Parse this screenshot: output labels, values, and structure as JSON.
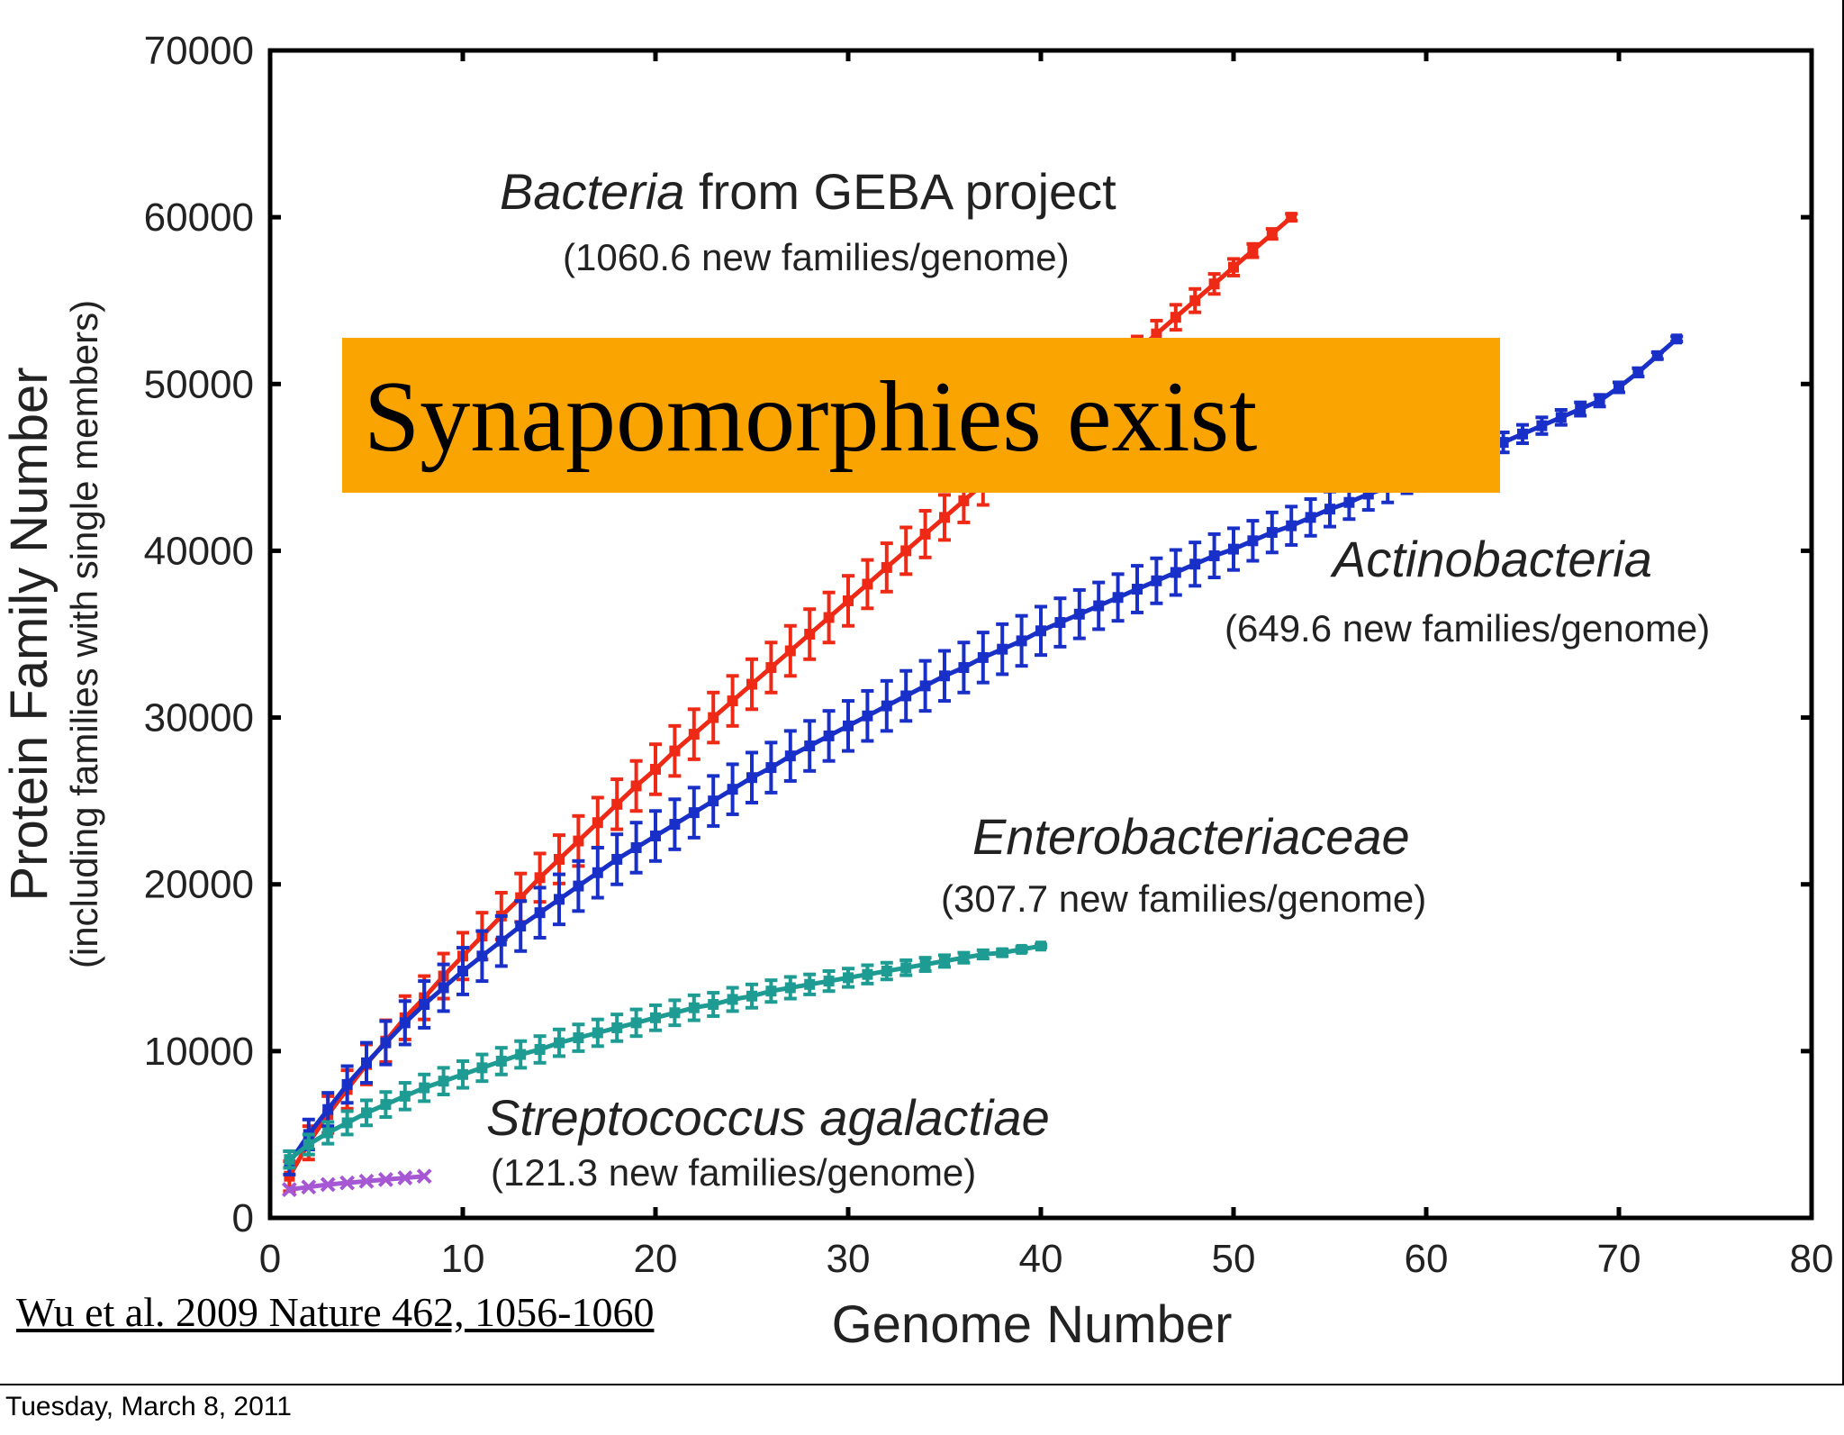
{
  "slide": {
    "banner_text": "Synapomorphies exist",
    "citation": "Wu et al. 2009 Nature 462, 1056-1060",
    "footer_date": "Tuesday, March 8, 2011"
  },
  "chart_data": {
    "type": "line",
    "title": "",
    "xlabel": "Genome Number",
    "ylabel": "Protein Family Number",
    "ylabel_sub": "(including families with single members)",
    "xlim": [
      0,
      80
    ],
    "ylim": [
      0,
      70000
    ],
    "xticks": [
      0,
      10,
      20,
      30,
      40,
      50,
      60,
      70,
      80
    ],
    "yticks": [
      0,
      10000,
      20000,
      30000,
      40000,
      50000,
      60000,
      70000
    ],
    "grid": false,
    "legend": "none",
    "series": [
      {
        "color": "#ee2a17",
        "error_bars": true,
        "annotation": {
          "name": "Bacteria",
          "name_suffix": " from GEBA project",
          "rate": "(1060.6 new families/genome)"
        },
        "x": [
          1,
          2,
          3,
          4,
          5,
          6,
          7,
          8,
          9,
          10,
          11,
          12,
          13,
          14,
          15,
          16,
          17,
          18,
          19,
          20,
          21,
          22,
          23,
          24,
          25,
          26,
          27,
          28,
          29,
          30,
          31,
          32,
          33,
          34,
          35,
          36,
          37,
          38,
          39,
          40,
          41,
          42,
          43,
          44,
          45,
          46,
          47,
          48,
          49,
          50,
          51,
          52,
          53
        ],
        "y": [
          2500,
          4500,
          6200,
          7700,
          9200,
          10600,
          12000,
          13200,
          14500,
          15700,
          16900,
          18100,
          19200,
          20400,
          21500,
          22600,
          23700,
          24800,
          25900,
          26900,
          28000,
          29000,
          30000,
          31000,
          32000,
          33000,
          34000,
          35000,
          36000,
          37000,
          38000,
          39000,
          40000,
          41000,
          42000,
          43000,
          44000,
          45000,
          46000,
          47000,
          48000,
          49000,
          50000,
          51000,
          52000,
          53000,
          54000,
          55000,
          56000,
          57000,
          58000,
          59000,
          60000
        ],
        "err": [
          900,
          1000,
          1100,
          1150,
          1200,
          1250,
          1300,
          1300,
          1350,
          1400,
          1400,
          1400,
          1450,
          1450,
          1450,
          1500,
          1500,
          1500,
          1500,
          1500,
          1500,
          1500,
          1500,
          1500,
          1500,
          1500,
          1500,
          1500,
          1500,
          1500,
          1450,
          1450,
          1400,
          1400,
          1350,
          1300,
          1250,
          1200,
          1150,
          1100,
          1050,
          1000,
          950,
          900,
          850,
          800,
          750,
          700,
          600,
          500,
          400,
          300,
          200
        ]
      },
      {
        "color": "#1930c8",
        "error_bars": true,
        "annotation": {
          "name": "Actinobacteria",
          "rate": "(649.6 new families/genome)"
        },
        "x": [
          1,
          2,
          3,
          4,
          5,
          6,
          7,
          8,
          9,
          10,
          11,
          12,
          13,
          14,
          15,
          16,
          17,
          18,
          19,
          20,
          21,
          22,
          23,
          24,
          25,
          26,
          27,
          28,
          29,
          30,
          31,
          32,
          33,
          34,
          35,
          36,
          37,
          38,
          39,
          40,
          41,
          42,
          43,
          44,
          45,
          46,
          47,
          48,
          49,
          50,
          51,
          52,
          53,
          54,
          55,
          56,
          57,
          58,
          59,
          60,
          61,
          62,
          63,
          64,
          65,
          66,
          67,
          68,
          69,
          70,
          71,
          72,
          73
        ],
        "y": [
          3300,
          5000,
          6500,
          8000,
          9300,
          10500,
          11700,
          12800,
          13800,
          14800,
          15700,
          16600,
          17500,
          18300,
          19100,
          19900,
          20700,
          21500,
          22200,
          22900,
          23600,
          24300,
          25000,
          25700,
          26400,
          27000,
          27700,
          28300,
          28900,
          29500,
          30100,
          30700,
          31300,
          31900,
          32500,
          33000,
          33600,
          34100,
          34600,
          35200,
          35700,
          36200,
          36700,
          37200,
          37700,
          38200,
          38700,
          39200,
          39700,
          40100,
          40600,
          41100,
          41500,
          42000,
          42500,
          42900,
          43400,
          43800,
          44300,
          44700,
          45200,
          45600,
          46100,
          46500,
          47000,
          47500,
          48000,
          48500,
          49000,
          49800,
          50700,
          51700,
          52700
        ],
        "err": [
          700,
          900,
          1000,
          1100,
          1200,
          1300,
          1300,
          1400,
          1400,
          1400,
          1500,
          1500,
          1500,
          1500,
          1500,
          1500,
          1500,
          1500,
          1500,
          1500,
          1500,
          1500,
          1500,
          1500,
          1500,
          1500,
          1500,
          1500,
          1500,
          1500,
          1500,
          1500,
          1500,
          1500,
          1500,
          1500,
          1500,
          1500,
          1500,
          1450,
          1450,
          1450,
          1400,
          1400,
          1400,
          1350,
          1350,
          1300,
          1300,
          1250,
          1200,
          1200,
          1150,
          1100,
          1050,
          1000,
          950,
          900,
          850,
          800,
          750,
          700,
          650,
          600,
          550,
          500,
          450,
          400,
          350,
          300,
          250,
          200,
          150
        ]
      },
      {
        "color": "#1e9c93",
        "error_bars": true,
        "annotation": {
          "name": "Enterobacteriaceae",
          "rate": "(307.7 new families/genome)"
        },
        "x": [
          1,
          2,
          3,
          4,
          5,
          6,
          7,
          8,
          9,
          10,
          11,
          12,
          13,
          14,
          15,
          16,
          17,
          18,
          19,
          20,
          21,
          22,
          23,
          24,
          25,
          26,
          27,
          28,
          29,
          30,
          31,
          32,
          33,
          34,
          35,
          36,
          37,
          38,
          39,
          40
        ],
        "y": [
          3500,
          4400,
          5100,
          5700,
          6300,
          6800,
          7300,
          7800,
          8200,
          8600,
          9000,
          9400,
          9800,
          10100,
          10500,
          10800,
          11100,
          11400,
          11700,
          12000,
          12300,
          12600,
          12800,
          13100,
          13300,
          13600,
          13800,
          14000,
          14200,
          14400,
          14600,
          14800,
          15000,
          15200,
          15400,
          15600,
          15800,
          15900,
          16100,
          16300
        ],
        "err": [
          500,
          600,
          650,
          700,
          750,
          750,
          800,
          800,
          800,
          800,
          800,
          800,
          800,
          800,
          800,
          800,
          800,
          800,
          800,
          750,
          750,
          750,
          700,
          700,
          700,
          650,
          650,
          600,
          600,
          550,
          550,
          500,
          450,
          400,
          350,
          300,
          250,
          200,
          150,
          100
        ]
      },
      {
        "color": "#a657d4",
        "error_bars": false,
        "annotation": {
          "name": "Streptococcus agalactiae",
          "rate": "(121.3 new families/genome)"
        },
        "x": [
          1,
          2,
          3,
          4,
          5,
          6,
          7,
          8
        ],
        "y": [
          1700,
          1850,
          2000,
          2100,
          2200,
          2300,
          2400,
          2500
        ],
        "err": [
          0,
          0,
          0,
          0,
          0,
          0,
          0,
          0
        ]
      }
    ]
  }
}
